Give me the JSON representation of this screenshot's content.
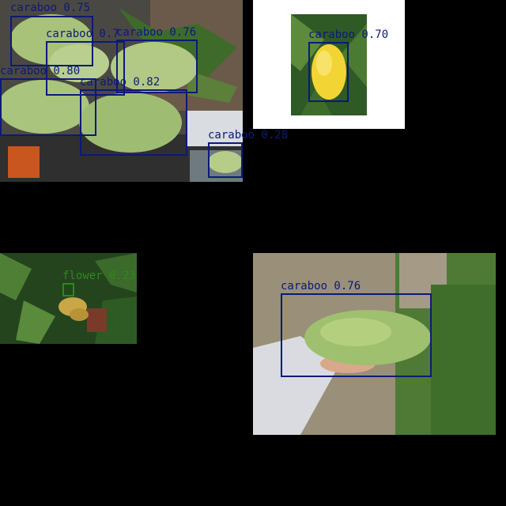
{
  "colors": {
    "background": "#000000",
    "box_caraboo": "#0b1a78",
    "box_flower": "#2a8a1a"
  },
  "tiles": [
    {
      "name": "tile-kitchen-mangoes",
      "description_icon": "mango-cluster-photo"
    },
    {
      "name": "tile-yellow-mango",
      "description_icon": "yellow-mango-photo"
    },
    {
      "name": "tile-mango-flower",
      "description_icon": "mango-flower-photo"
    },
    {
      "name": "tile-hand-mango",
      "description_icon": "hand-holding-mango-photo"
    }
  ],
  "detections": [
    {
      "label": "caraboo 0.75"
    },
    {
      "label": "caraboo 0.7"
    },
    {
      "label": "caraboo 0.76"
    },
    {
      "label": "caraboo 0.80"
    },
    {
      "label": "caraboo 0.82"
    },
    {
      "label": "caraboo 0.28"
    },
    {
      "label": "caraboo 0.70"
    },
    {
      "label": "flower 0.23"
    },
    {
      "label": "caraboo 0.76"
    }
  ]
}
